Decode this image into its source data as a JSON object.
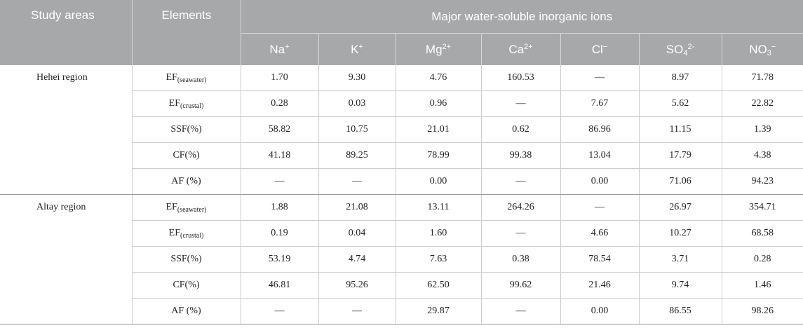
{
  "header": {
    "study_areas": "Study areas",
    "elements": "Elements",
    "major": "Major water-soluble inorganic ions",
    "ions": [
      {
        "base": "Na",
        "sub": "",
        "sup": "+"
      },
      {
        "base": "K",
        "sub": "",
        "sup": "+"
      },
      {
        "base": "Mg",
        "sub": "",
        "sup": "2+"
      },
      {
        "base": "Ca",
        "sub": "",
        "sup": "2+"
      },
      {
        "base": "Cl",
        "sub": "",
        "sup": "−"
      },
      {
        "base": "SO",
        "sub": "4",
        "sup": "2-"
      },
      {
        "base": "NO",
        "sub": "3",
        "sup": "−"
      }
    ]
  },
  "regions": [
    {
      "name": "Hehei region",
      "rows": [
        {
          "element": "EF",
          "element_sub": "(seawater)",
          "values": [
            "1.70",
            "9.30",
            "4.76",
            "160.53",
            "—",
            "8.97",
            "71.78"
          ]
        },
        {
          "element": "EF",
          "element_sub": "(crustal)",
          "values": [
            "0.28",
            "0.03",
            "0.96",
            "—",
            "7.67",
            "5.62",
            "22.82"
          ]
        },
        {
          "element": "SSF(%)",
          "element_sub": "",
          "values": [
            "58.82",
            "10.75",
            "21.01",
            "0.62",
            "86.96",
            "11.15",
            "1.39"
          ]
        },
        {
          "element": "CF(%)",
          "element_sub": "",
          "values": [
            "41.18",
            "89.25",
            "78.99",
            "99.38",
            "13.04",
            "17.79",
            "4.38"
          ]
        },
        {
          "element": "AF (%)",
          "element_sub": "",
          "values": [
            "—",
            "—",
            "0.00",
            "—",
            "0.00",
            "71.06",
            "94.23"
          ]
        }
      ]
    },
    {
      "name": "Altay region",
      "rows": [
        {
          "element": "EF",
          "element_sub": "(seawater)",
          "values": [
            "1.88",
            "21.08",
            "13.11",
            "264.26",
            "—",
            "26.97",
            "354.71"
          ]
        },
        {
          "element": "EF",
          "element_sub": "(crustal)",
          "values": [
            "0.19",
            "0.04",
            "1.60",
            "—",
            "4.66",
            "10.27",
            "68.58"
          ]
        },
        {
          "element": "SSF(%)",
          "element_sub": "",
          "values": [
            "53.19",
            "4.74",
            "7.63",
            "0.38",
            "78.54",
            "3.71",
            "0.28"
          ]
        },
        {
          "element": "CF(%)",
          "element_sub": "",
          "values": [
            "46.81",
            "95.26",
            "62.50",
            "99.62",
            "21.46",
            "9.74",
            "1.46"
          ]
        },
        {
          "element": "AF (%)",
          "element_sub": "",
          "values": [
            "—",
            "—",
            "29.87",
            "—",
            "0.00",
            "86.55",
            "98.26"
          ]
        }
      ]
    }
  ]
}
